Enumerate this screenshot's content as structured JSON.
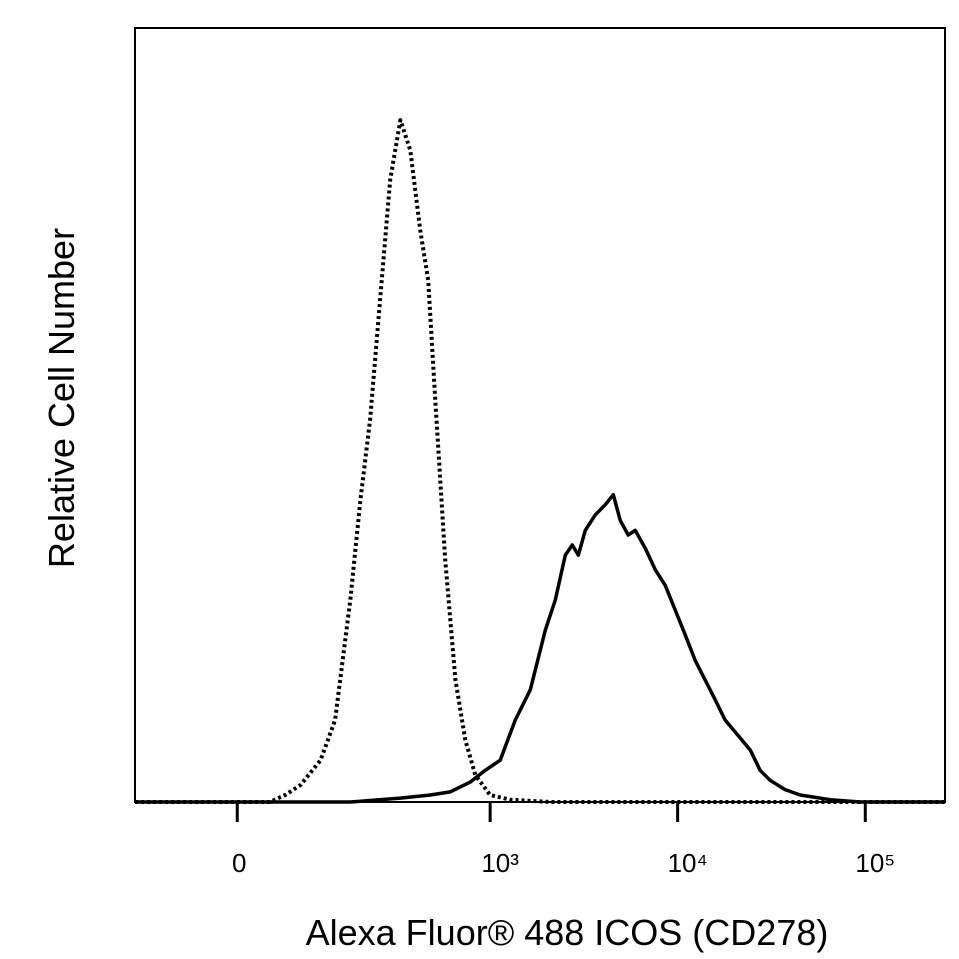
{
  "chart_data": {
    "type": "line",
    "xlabel": "Alexa Fluor® 488 ICOS (CD278)",
    "ylabel": "Relative Cell Number",
    "xscale": "asinh",
    "xlim": [
      -145,
      266000
    ],
    "ylim": [
      0,
      100
    ],
    "xticks": [
      0,
      {
        "value": 1000,
        "label": "10³"
      },
      {
        "value": 10000,
        "label": "10⁴"
      },
      {
        "value": 100000,
        "label": "10⁵"
      }
    ],
    "series": [
      {
        "color": "#000000",
        "line_style": "dotted",
        "x": [
          -145,
          37,
          56,
          77,
          109,
          136,
          169,
          194,
          221,
          252,
          287,
          327,
          371,
          420,
          464,
          507,
          574,
          651,
          736,
          833,
          1000,
          1280,
          2100,
          266000
        ],
        "values": [
          0,
          0,
          0.9,
          2.2,
          5.4,
          10.6,
          26.1,
          39.0,
          49.4,
          64.9,
          80.4,
          88.1,
          84.2,
          73.9,
          67.4,
          51.9,
          31.3,
          15.8,
          8.0,
          3.5,
          0.9,
          0.3,
          0,
          0
        ]
      },
      {
        "color": "#000000",
        "line_style": "solid",
        "x": [
          -145,
          169,
          194,
          327,
          477,
          610,
          785,
          942,
          1132,
          1363,
          1639,
          1971,
          2228,
          2518,
          2745,
          2955,
          3220,
          3640,
          4110,
          4540,
          4940,
          5450,
          5940,
          6720,
          7600,
          8590,
          9710,
          10980,
          12400,
          14000,
          15850,
          17900,
          21500,
          24400,
          27500,
          31100,
          37400,
          45000,
          65000,
          94000,
          266000
        ],
        "values": [
          0,
          0,
          0.1,
          0.5,
          0.9,
          1.3,
          2.6,
          4.1,
          5.4,
          10.6,
          14.5,
          22.2,
          26.1,
          31.9,
          33.2,
          31.9,
          35.1,
          37.1,
          38.4,
          39.7,
          36.4,
          34.5,
          35.1,
          32.8,
          30.0,
          28.0,
          24.8,
          21.6,
          18.3,
          15.8,
          13.2,
          10.6,
          8.3,
          6.7,
          4.1,
          2.8,
          1.6,
          0.9,
          0.3,
          0,
          0
        ]
      }
    ]
  }
}
